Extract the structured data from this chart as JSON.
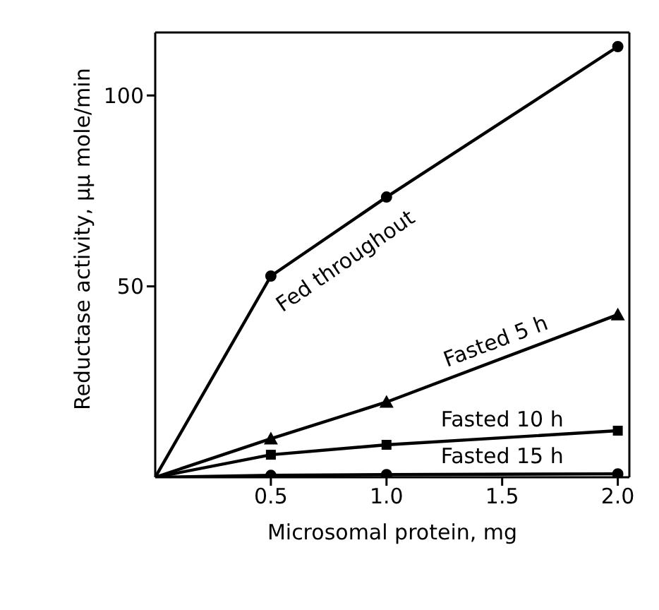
{
  "chart_data": {
    "type": "line",
    "xlabel": "Microsomal protein, mg",
    "ylabel": "Reductase activity, μμ mole/min",
    "x": [
      0,
      0.5,
      1.0,
      2.0
    ],
    "series": [
      {
        "name": "Fed throughout",
        "color": "#000000",
        "marker": "circle",
        "values": [
          0,
          52.7,
          73.4,
          112.8
        ]
      },
      {
        "name": "Fasted 5 h",
        "color": "#000000",
        "marker": "triangle",
        "values": [
          0,
          10.1,
          19.7,
          42.6
        ]
      },
      {
        "name": "Fasted 10 h",
        "color": "#000000",
        "marker": "square",
        "values": [
          0,
          5.9,
          8.5,
          12.2
        ]
      },
      {
        "name": "Fasted 15 h",
        "color": "#000000",
        "marker": "circle",
        "values": [
          0,
          0.5,
          0.7,
          0.9
        ]
      }
    ],
    "xlim": [
      0,
      2.05
    ],
    "ylim": [
      0,
      116.5
    ],
    "xticks": [
      {
        "value": 0.5,
        "label": "0.5"
      },
      {
        "value": 1.0,
        "label": "1.0"
      },
      {
        "value": 1.5,
        "label": "1.5"
      },
      {
        "value": 2.0,
        "label": "2.0"
      }
    ],
    "yticks": [
      50,
      100
    ],
    "grid": false,
    "legend": false,
    "line_style": "solid"
  }
}
